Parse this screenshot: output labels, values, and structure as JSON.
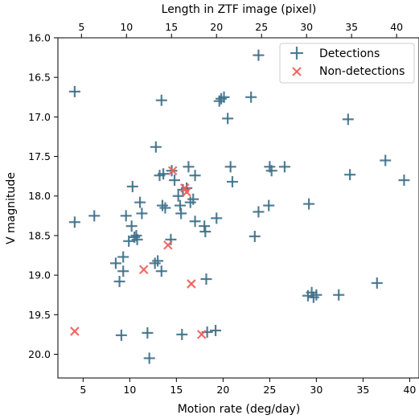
{
  "chart_data": {
    "type": "scatter",
    "xlabel": "Motion rate (deg/day)",
    "ylabel": "V magnitude",
    "top_xlabel": "Length in ZTF image (pixel)",
    "xlim": [
      2.3,
      41.0
    ],
    "ylim": [
      20.3,
      16.0
    ],
    "y_inverted": true,
    "xticks": [
      5,
      10,
      15,
      20,
      25,
      30,
      35,
      40
    ],
    "yticks": [
      16.0,
      16.5,
      17.0,
      17.5,
      18.0,
      18.5,
      19.0,
      19.5,
      20.0
    ],
    "top_xticks": [
      5,
      10,
      15,
      20,
      25,
      30,
      35,
      40
    ],
    "top_axis_scale": 0.965,
    "grid": false,
    "legend": {
      "position": "top-right",
      "entries": [
        "Detections",
        "Non-detections"
      ]
    },
    "series": [
      {
        "name": "Detections",
        "marker": "plus",
        "color": "#3f7089",
        "points": [
          {
            "x": 4.1,
            "y": 16.68
          },
          {
            "x": 4.1,
            "y": 18.33
          },
          {
            "x": 6.2,
            "y": 18.25
          },
          {
            "x": 8.5,
            "y": 18.85
          },
          {
            "x": 8.9,
            "y": 19.08
          },
          {
            "x": 9.1,
            "y": 19.76
          },
          {
            "x": 9.3,
            "y": 18.95
          },
          {
            "x": 9.3,
            "y": 18.77
          },
          {
            "x": 9.6,
            "y": 18.25
          },
          {
            "x": 9.9,
            "y": 18.57
          },
          {
            "x": 10.2,
            "y": 18.38
          },
          {
            "x": 10.3,
            "y": 17.88
          },
          {
            "x": 10.5,
            "y": 18.52
          },
          {
            "x": 10.7,
            "y": 18.5
          },
          {
            "x": 10.8,
            "y": 18.55
          },
          {
            "x": 11.1,
            "y": 18.08
          },
          {
            "x": 11.3,
            "y": 18.22
          },
          {
            "x": 11.9,
            "y": 19.73
          },
          {
            "x": 12.1,
            "y": 20.05
          },
          {
            "x": 12.7,
            "y": 18.85
          },
          {
            "x": 12.8,
            "y": 17.38
          },
          {
            "x": 13.0,
            "y": 18.82
          },
          {
            "x": 13.2,
            "y": 17.74
          },
          {
            "x": 13.4,
            "y": 16.79
          },
          {
            "x": 13.4,
            "y": 18.95
          },
          {
            "x": 13.5,
            "y": 18.12
          },
          {
            "x": 13.6,
            "y": 17.72
          },
          {
            "x": 13.8,
            "y": 18.15
          },
          {
            "x": 14.4,
            "y": 18.55
          },
          {
            "x": 14.5,
            "y": 17.68
          },
          {
            "x": 14.8,
            "y": 17.8
          },
          {
            "x": 15.2,
            "y": 18.0
          },
          {
            "x": 15.4,
            "y": 18.12
          },
          {
            "x": 15.5,
            "y": 18.22
          },
          {
            "x": 15.6,
            "y": 19.75
          },
          {
            "x": 15.7,
            "y": 17.92
          },
          {
            "x": 16.1,
            "y": 17.9
          },
          {
            "x": 16.3,
            "y": 17.63
          },
          {
            "x": 16.5,
            "y": 18.08
          },
          {
            "x": 16.8,
            "y": 18.04
          },
          {
            "x": 17.0,
            "y": 17.74
          },
          {
            "x": 17.0,
            "y": 18.32
          },
          {
            "x": 18.0,
            "y": 18.38
          },
          {
            "x": 18.1,
            "y": 18.45
          },
          {
            "x": 18.2,
            "y": 19.05
          },
          {
            "x": 18.3,
            "y": 19.72
          },
          {
            "x": 19.2,
            "y": 19.7
          },
          {
            "x": 19.3,
            "y": 18.28
          },
          {
            "x": 19.6,
            "y": 16.8
          },
          {
            "x": 19.8,
            "y": 16.77
          },
          {
            "x": 20.1,
            "y": 16.75
          },
          {
            "x": 20.5,
            "y": 17.02
          },
          {
            "x": 20.8,
            "y": 17.63
          },
          {
            "x": 21.0,
            "y": 17.82
          },
          {
            "x": 23.0,
            "y": 16.75
          },
          {
            "x": 23.4,
            "y": 18.51
          },
          {
            "x": 23.8,
            "y": 16.22
          },
          {
            "x": 23.8,
            "y": 18.2
          },
          {
            "x": 24.9,
            "y": 18.12
          },
          {
            "x": 25.0,
            "y": 17.63
          },
          {
            "x": 25.2,
            "y": 17.68
          },
          {
            "x": 26.6,
            "y": 17.63
          },
          {
            "x": 29.1,
            "y": 19.26
          },
          {
            "x": 29.2,
            "y": 18.1
          },
          {
            "x": 29.5,
            "y": 19.22
          },
          {
            "x": 29.7,
            "y": 19.28
          },
          {
            "x": 30.0,
            "y": 19.25
          },
          {
            "x": 32.4,
            "y": 19.25
          },
          {
            "x": 33.4,
            "y": 17.03
          },
          {
            "x": 33.6,
            "y": 17.73
          },
          {
            "x": 36.5,
            "y": 19.1
          },
          {
            "x": 37.4,
            "y": 17.55
          },
          {
            "x": 39.4,
            "y": 17.8
          }
        ]
      },
      {
        "name": "Non-detections",
        "marker": "x",
        "color": "#f15c59",
        "points": [
          {
            "x": 4.1,
            "y": 19.71
          },
          {
            "x": 11.5,
            "y": 18.93
          },
          {
            "x": 14.1,
            "y": 18.62
          },
          {
            "x": 14.6,
            "y": 17.68
          },
          {
            "x": 15.9,
            "y": 17.9
          },
          {
            "x": 16.1,
            "y": 17.95
          },
          {
            "x": 16.6,
            "y": 19.11
          },
          {
            "x": 17.7,
            "y": 19.75
          }
        ]
      }
    ]
  }
}
